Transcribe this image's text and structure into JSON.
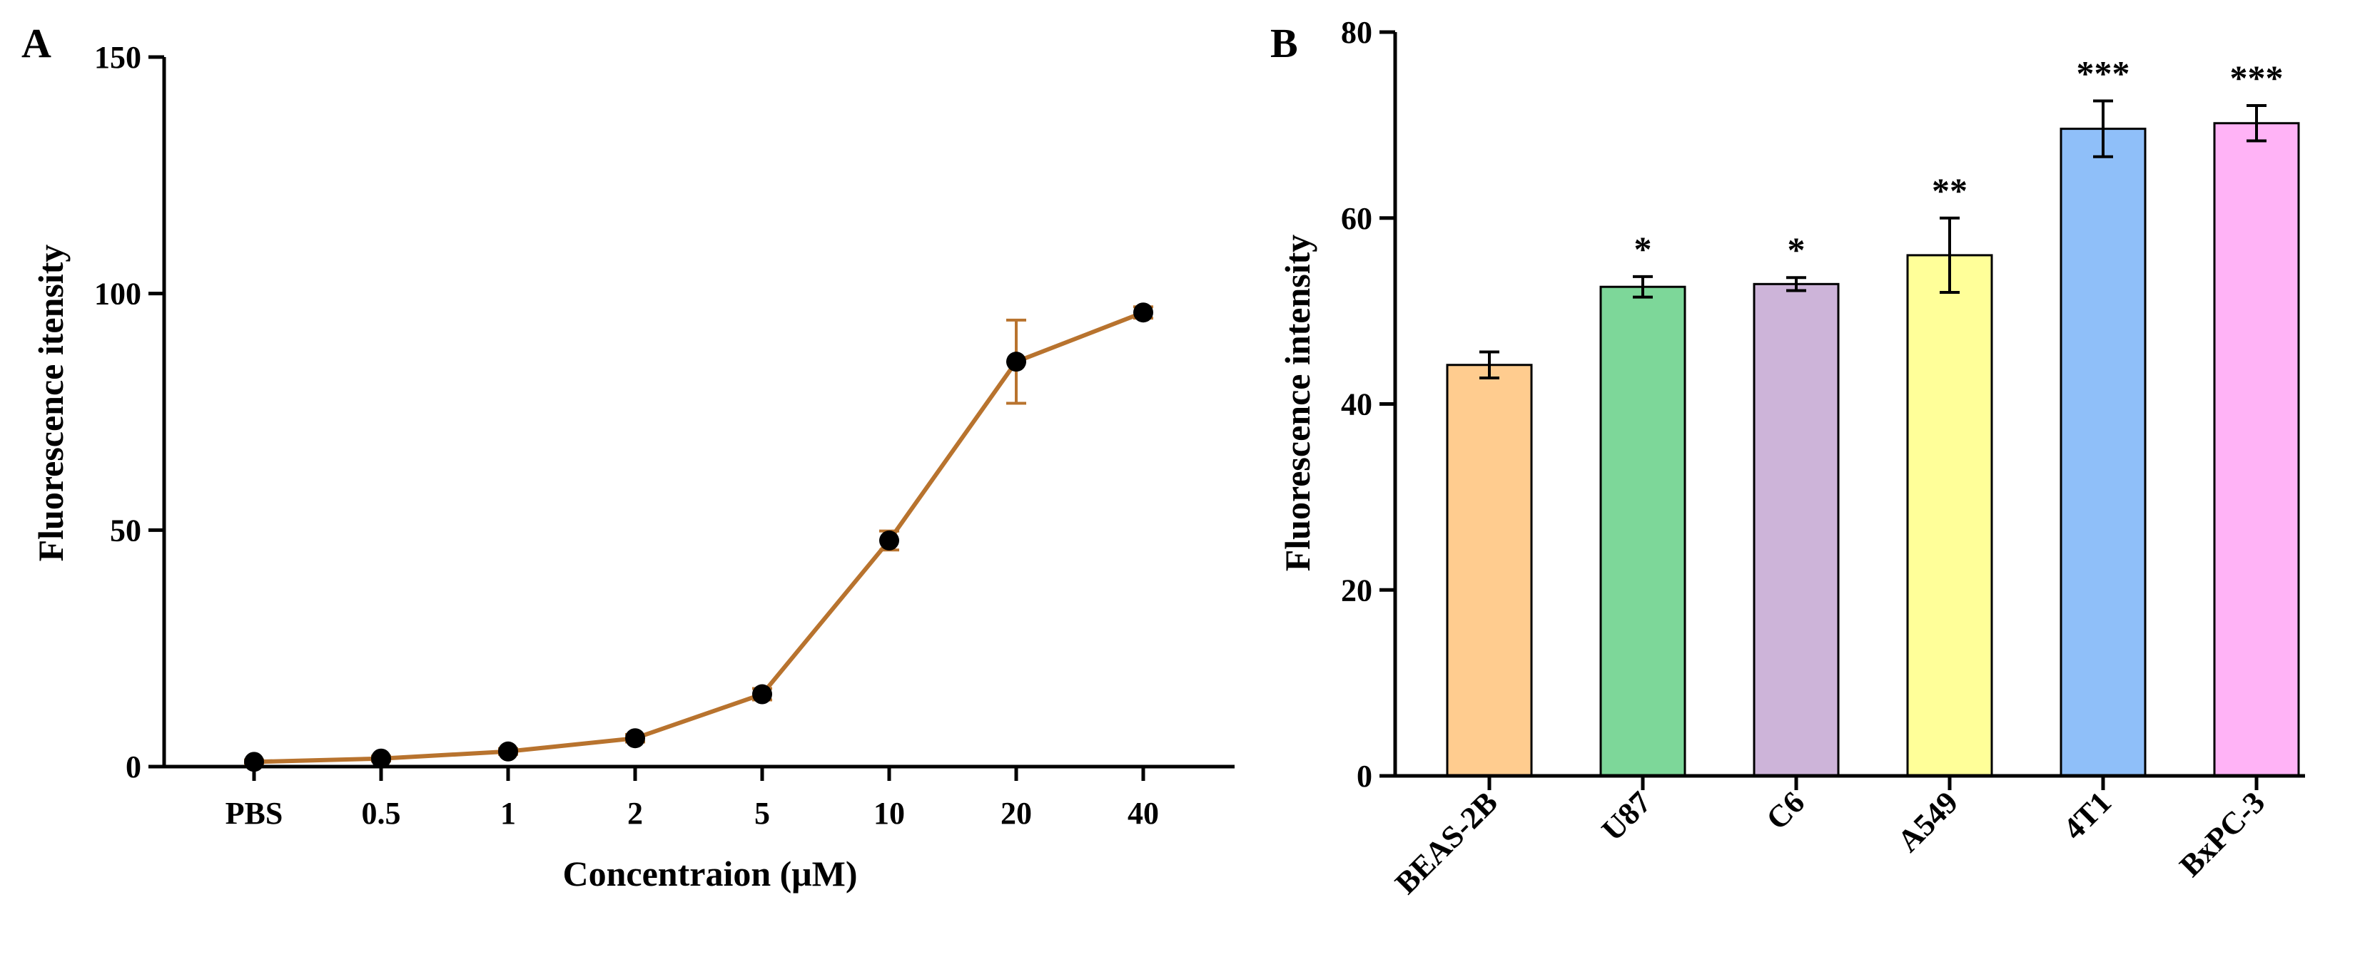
{
  "panels": {
    "A": {
      "letter": "A"
    },
    "B": {
      "letter": "B"
    }
  },
  "chart_data": [
    {
      "type": "line",
      "panel": "A",
      "title": "",
      "xlabel": "Concentraion (μM)",
      "ylabel": "Fluorescence itensity",
      "categories": [
        "PBS",
        "0.5",
        "1",
        "2",
        "5",
        "10",
        "20",
        "40"
      ],
      "series": [
        {
          "name": "Fluorescence",
          "values": [
            1,
            1.7,
            3.2,
            6,
            15.3,
            47.8,
            85.6,
            96
          ],
          "errors": [
            0.4,
            0.5,
            0.6,
            0.8,
            1.2,
            2.0,
            8.8,
            1.2
          ]
        }
      ],
      "ylim": [
        0,
        150
      ],
      "yticks": [
        0,
        50,
        100,
        150
      ],
      "color": "#B8732E",
      "marker_color": "#000000"
    },
    {
      "type": "bar",
      "panel": "B",
      "title": "",
      "xlabel": "",
      "ylabel": "Fluorescence intensity",
      "categories": [
        "BEAS-2B",
        "U87",
        "C6",
        "A549",
        "4T1",
        "BxPC-3"
      ],
      "values": [
        44.2,
        52.6,
        52.9,
        56.0,
        69.6,
        70.2
      ],
      "errors": [
        1.4,
        1.1,
        0.7,
        4.0,
        3.0,
        1.9
      ],
      "significance": [
        "",
        "*",
        "*",
        "**",
        "***",
        "***"
      ],
      "colors": [
        "#FFCC8F",
        "#7DD799",
        "#CDB4D9",
        "#FFFF99",
        "#8FBFF9",
        "#FFB3F6"
      ],
      "ylim": [
        0,
        80
      ],
      "yticks": [
        0,
        20,
        40,
        60,
        80
      ]
    }
  ]
}
